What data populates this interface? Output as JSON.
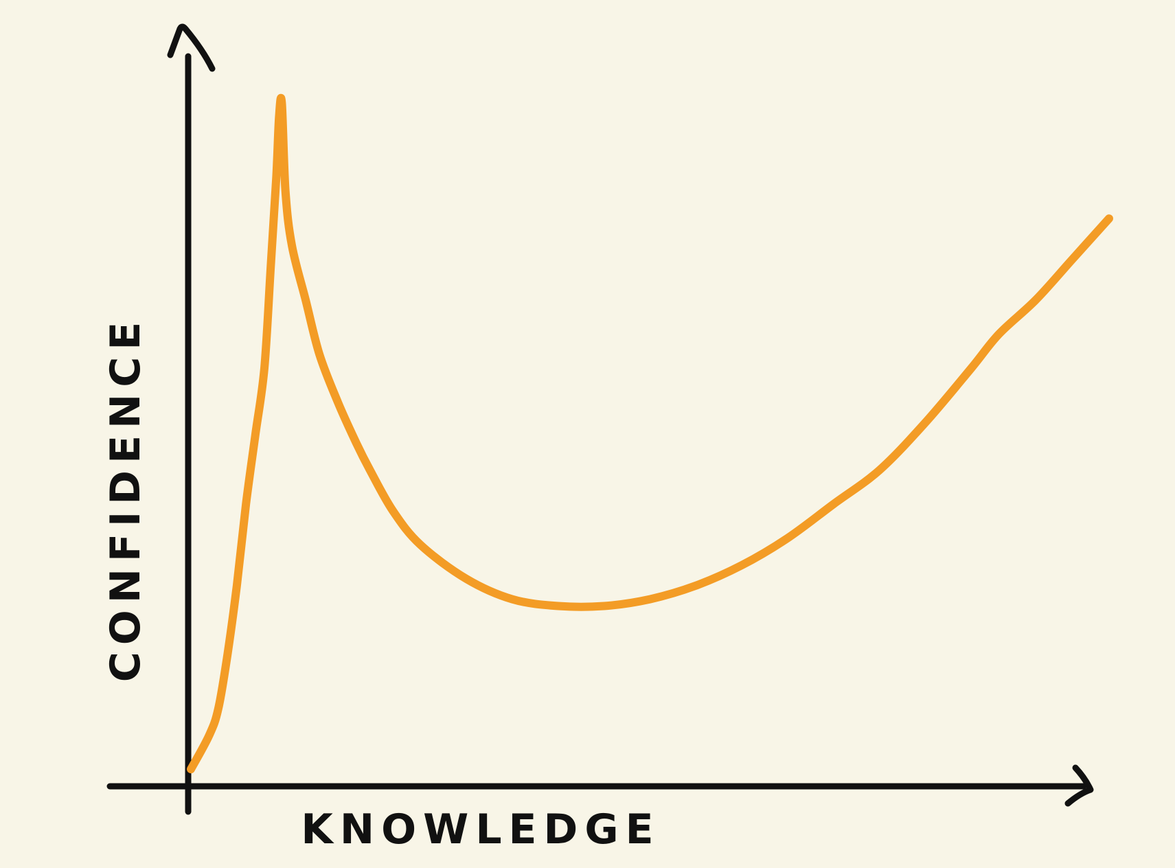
{
  "colors": {
    "background": "#f8f5e7",
    "axis": "#111111",
    "curve": "#f39c26"
  },
  "chart_data": {
    "type": "line",
    "xlabel": "KNOWLEDGE",
    "ylabel": "CONFIDENCE",
    "title": "",
    "grid": false,
    "legend": "none",
    "xlim": [
      0,
      100
    ],
    "ylim": [
      0,
      100
    ],
    "series": [
      {
        "values_xy": [
          [
            0,
            1
          ],
          [
            2,
            6
          ],
          [
            3,
            10
          ],
          [
            4,
            18
          ],
          [
            5,
            28
          ],
          [
            6,
            40
          ],
          [
            7,
            50
          ],
          [
            8,
            60
          ],
          [
            8.7,
            75
          ],
          [
            9.3,
            88
          ],
          [
            9.6,
            97
          ],
          [
            9.9,
            99
          ],
          [
            10.3,
            86
          ],
          [
            11,
            78
          ],
          [
            12.5,
            70
          ],
          [
            14,
            62
          ],
          [
            16,
            55
          ],
          [
            18,
            49
          ],
          [
            19.5,
            45
          ],
          [
            22,
            39
          ],
          [
            25,
            34
          ],
          [
            30,
            29
          ],
          [
            35,
            26
          ],
          [
            40,
            25
          ],
          [
            45,
            25
          ],
          [
            50,
            26
          ],
          [
            55,
            28
          ],
          [
            60,
            31
          ],
          [
            65,
            35
          ],
          [
            70,
            40
          ],
          [
            75,
            45
          ],
          [
            80,
            52
          ],
          [
            85,
            60
          ],
          [
            88,
            65
          ],
          [
            92,
            70
          ],
          [
            96,
            76
          ],
          [
            100,
            82
          ]
        ]
      }
    ]
  }
}
